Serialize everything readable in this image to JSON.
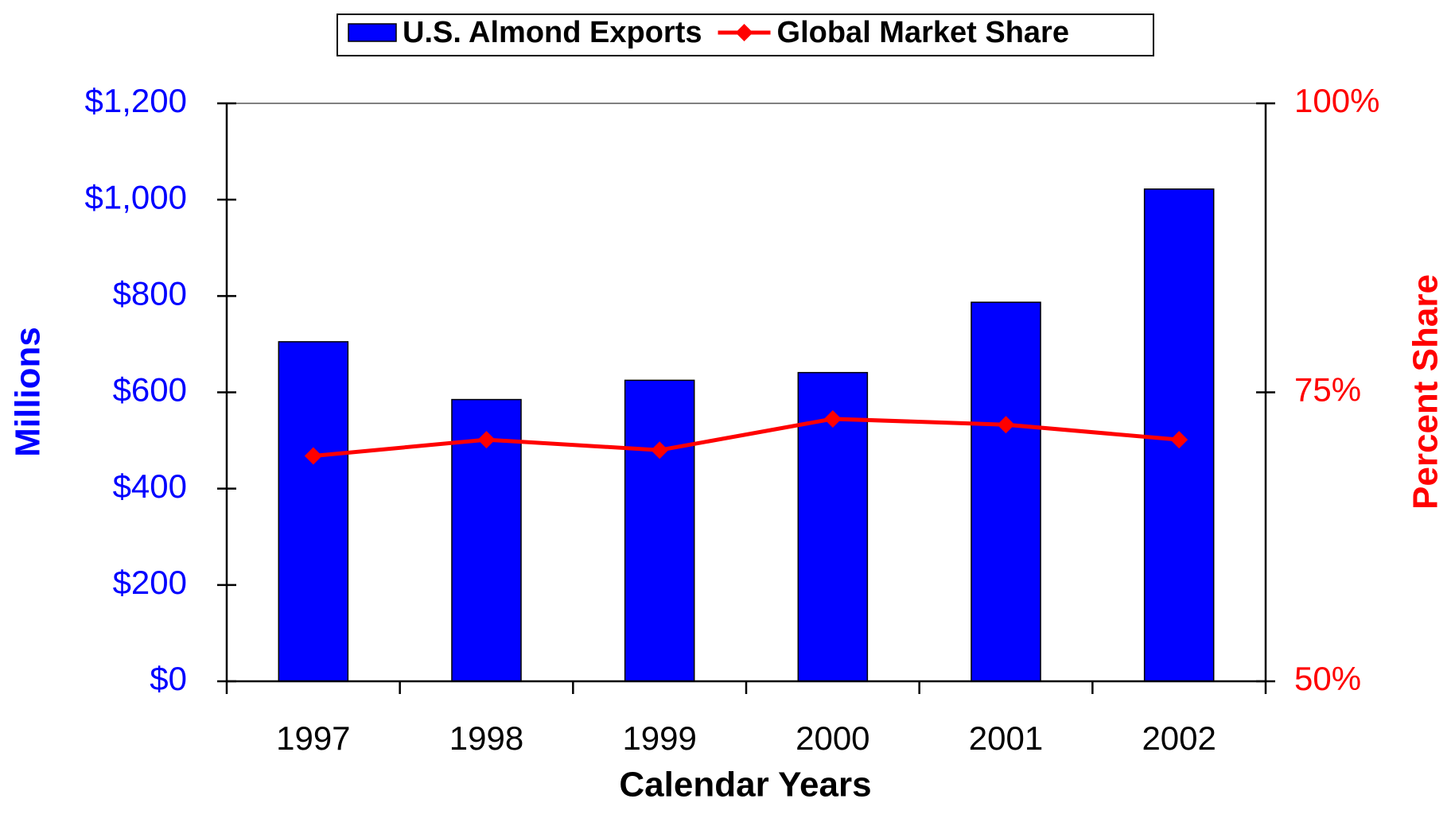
{
  "chart_data": {
    "type": "bar_line",
    "categories": [
      "1997",
      "1998",
      "1999",
      "2000",
      "2001",
      "2002"
    ],
    "series": [
      {
        "name": "U.S. Almond Exports",
        "type": "bar",
        "color": "#0000ff",
        "values": [
          705,
          585,
          625,
          641,
          787,
          1022
        ]
      },
      {
        "name": "Global Market Share",
        "type": "line",
        "axis": "y2",
        "color": "#ff0000",
        "values": [
          69.5,
          70.9,
          70.0,
          72.7,
          72.2,
          70.9
        ]
      }
    ],
    "x_label": "Calendar Years",
    "y_label": "Millions",
    "y2_label": "Percent Share",
    "ylim": [
      0,
      1200
    ],
    "yticks": [
      {
        "value": 0,
        "label": "$0"
      },
      {
        "value": 200,
        "label": "$200"
      },
      {
        "value": 400,
        "label": "$400"
      },
      {
        "value": 600,
        "label": "$600"
      },
      {
        "value": 800,
        "label": "$800"
      },
      {
        "value": 1000,
        "label": "$1,000"
      },
      {
        "value": 1200,
        "label": "$1,200"
      }
    ],
    "y2lim": [
      50,
      100
    ],
    "y2ticks": [
      {
        "value": 50,
        "label": "50%"
      },
      {
        "value": 75,
        "label": "75%"
      },
      {
        "value": 100,
        "label": "100%"
      }
    ],
    "legend": "top"
  }
}
